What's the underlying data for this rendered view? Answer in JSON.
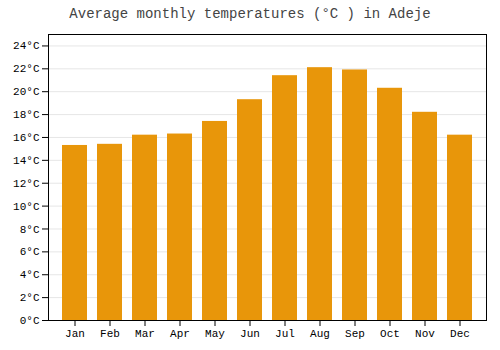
{
  "chart_data": {
    "type": "bar",
    "title": "Average monthly temperatures (°C ) in Adeje",
    "categories": [
      "Jan",
      "Feb",
      "Mar",
      "Apr",
      "May",
      "Jun",
      "Jul",
      "Aug",
      "Sep",
      "Oct",
      "Nov",
      "Dec"
    ],
    "values": [
      15.3,
      15.4,
      16.2,
      16.3,
      17.4,
      19.3,
      21.4,
      22.1,
      21.9,
      20.3,
      18.2,
      16.2
    ],
    "color": "#E8960A",
    "ylim": [
      0,
      25
    ],
    "yticks": [
      {
        "value": 0,
        "label": "0°C"
      },
      {
        "value": 2,
        "label": "2°C"
      },
      {
        "value": 4,
        "label": "4°C"
      },
      {
        "value": 6,
        "label": "6°C"
      },
      {
        "value": 8,
        "label": "8°C"
      },
      {
        "value": 10,
        "label": "10°C"
      },
      {
        "value": 12,
        "label": "12°C"
      },
      {
        "value": 14,
        "label": "14°C"
      },
      {
        "value": 16,
        "label": "16°C"
      },
      {
        "value": 18,
        "label": "18°C"
      },
      {
        "value": 20,
        "label": "20°C"
      },
      {
        "value": 22,
        "label": "22°C"
      },
      {
        "value": 24,
        "label": "24°C"
      }
    ],
    "grid": true
  }
}
